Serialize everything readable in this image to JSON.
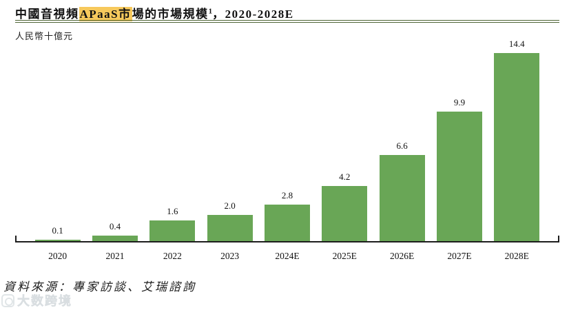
{
  "header": {
    "title_prefix": "中國音視頻",
    "title_highlight": "APaaS市",
    "title_suffix": "場的市場規模",
    "title_superscript": "1",
    "title_tail": "，2020-2028E",
    "highlight_color": "#f7c95c",
    "rule_color": "#4d6335",
    "unit_label": "人民幣十億元"
  },
  "chart_data": {
    "type": "bar",
    "title": "中國音視頻APaaS市場的市場規模¹，2020-2028E",
    "ylabel": "人民幣十億元",
    "xlabel": "",
    "categories": [
      "2020",
      "2021",
      "2022",
      "2023",
      "2024E",
      "2025E",
      "2026E",
      "2027E",
      "2028E"
    ],
    "values": [
      0.1,
      0.4,
      1.6,
      2.0,
      2.8,
      4.2,
      6.6,
      9.9,
      14.4
    ],
    "value_labels": [
      "0.1",
      "0.4",
      "1.6",
      "2.0",
      "2.8",
      "4.2",
      "6.6",
      "9.9",
      "14.4"
    ],
    "ylim": [
      0,
      14.4
    ],
    "grid": false,
    "legend": "none",
    "bar_color": "#69a656",
    "axis_color": "#1c1c1c"
  },
  "footer": {
    "source": "資料來源：專家訪談、艾瑞諮詢"
  },
  "watermark": {
    "text": "大数跨境"
  }
}
